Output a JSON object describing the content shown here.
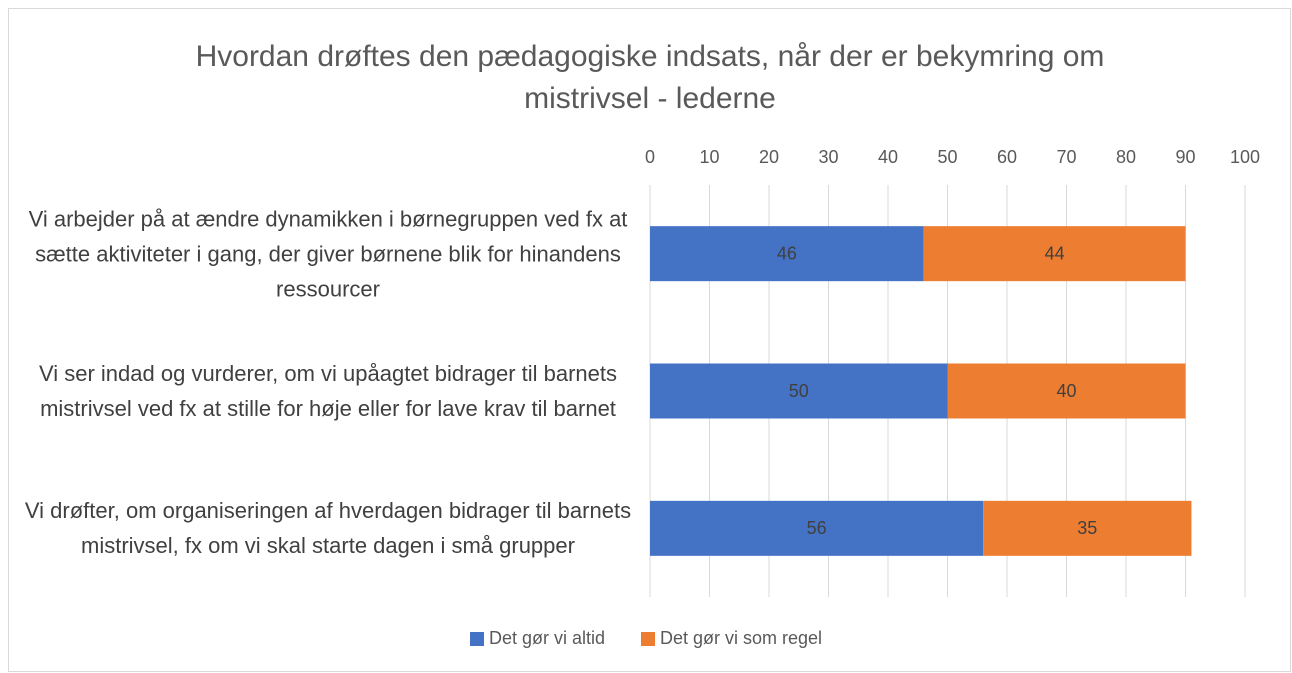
{
  "chart_data": {
    "type": "stacked-bar-horizontal",
    "title": "Hvordan drøftes den pædagogiske indsats, når der er bekymring om mistrivsel - lederne",
    "categories": [
      "Vi arbejder på at ændre dynamikken i børnegruppen ved fx at sætte aktiviteter i gang, der giver børnene blik for hinandens ressourcer",
      "Vi ser indad og vurderer, om vi upåagtet bidrager til barnets mistrivsel ved fx at stille for høje eller for lave krav til barnet",
      "Vi drøfter, om organiseringen af hverdagen bidrager til barnets mistrivsel, fx om vi skal starte dagen i små grupper"
    ],
    "series": [
      {
        "name": "Det gør vi altid",
        "color": "#4472c4",
        "values": [
          46,
          50,
          56
        ]
      },
      {
        "name": "Det gør vi som regel",
        "color": "#ed7d31",
        "values": [
          44,
          40,
          35
        ]
      }
    ],
    "xlim": [
      0,
      100
    ],
    "xticks": [
      0,
      10,
      20,
      30,
      40,
      50,
      60,
      70,
      80,
      90,
      100
    ],
    "grid": true,
    "legend": "bottom"
  }
}
